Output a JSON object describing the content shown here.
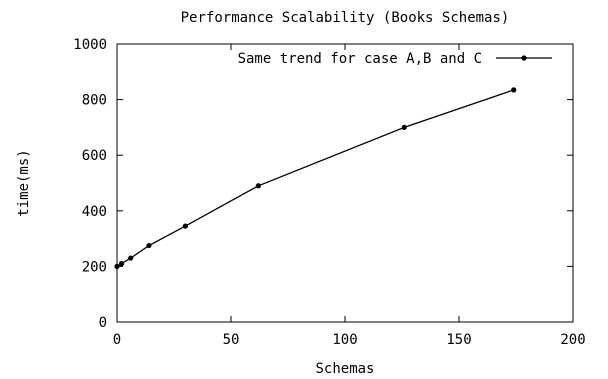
{
  "chart_data": {
    "type": "line",
    "title": "Performance Scalability (Books Schemas)",
    "xlabel": "Schemas",
    "ylabel": "time(ms)",
    "xlim": [
      0,
      200
    ],
    "ylim": [
      0,
      1000
    ],
    "xticks": [
      "0",
      "50",
      "100",
      "150",
      "200"
    ],
    "yticks": [
      "0",
      "200",
      "400",
      "600",
      "800",
      "1000"
    ],
    "grid": false,
    "legend_position": "top",
    "series": [
      {
        "name": "Same trend for case A,B and C",
        "marker": "dot",
        "x": [
          0,
          2,
          6,
          14,
          30,
          62,
          126,
          174
        ],
        "y": [
          200,
          210,
          230,
          275,
          345,
          490,
          700,
          835
        ]
      }
    ]
  }
}
